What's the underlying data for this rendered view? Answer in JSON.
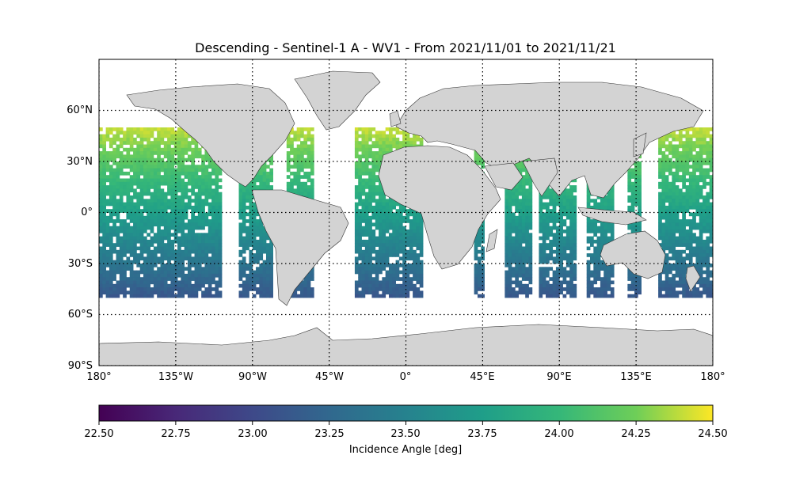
{
  "title": "Descending - Sentinel-1 A - WV1 - From 2021/11/01 to 2021/11/21",
  "map": {
    "projection": "PlateCarree",
    "land_color": "#d3d3d3",
    "ocean_color": "#ffffff",
    "gridlines": "dotted",
    "lon_ticks": [
      "180°",
      "135°W",
      "90°W",
      "45°W",
      "0°",
      "45°E",
      "90°E",
      "135°E",
      "180°"
    ],
    "lat_ticks": [
      "60°N",
      "30°N",
      "0°",
      "30°S",
      "60°S",
      "90°S"
    ]
  },
  "chart_data": {
    "type": "heatmap",
    "title": "Descending - Sentinel-1 A - WV1 - From 2021/11/01 to 2021/11/21",
    "xlim": [
      -180,
      180
    ],
    "ylim": [
      -90,
      90
    ],
    "x_ticks": [
      -180,
      -135,
      -90,
      -45,
      0,
      45,
      90,
      135,
      180
    ],
    "y_ticks": [
      60,
      30,
      0,
      -30,
      -60,
      -90
    ],
    "value_range": [
      22.5,
      24.5
    ],
    "colormap": "viridis",
    "colorbar": {
      "label": "Incidence Angle [deg]",
      "ticks": [
        "22.50",
        "22.75",
        "23.00",
        "23.25",
        "23.50",
        "23.75",
        "24.00",
        "24.25",
        "24.50"
      ]
    },
    "data_extent": {
      "lat": [
        -50,
        50
      ]
    },
    "value_trend": "incidence angle ≈ 24.4 deg near 50°N falling to ≈ 23.1 deg near 50°S; ocean only, sparse swaths in the Indian Ocean"
  }
}
